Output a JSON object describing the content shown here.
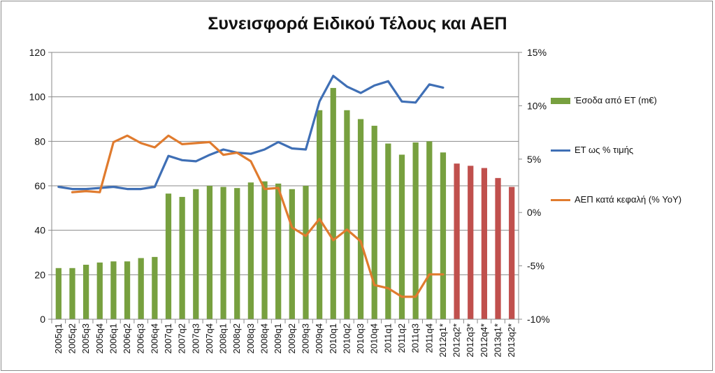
{
  "chart_data": {
    "type": "bar",
    "title": "Συνεισφορά Ειδικού Τέλους και ΑΕΠ",
    "categories": [
      "2005q1",
      "2005q2",
      "2005q3",
      "2005q4",
      "2006q1",
      "2006q2",
      "2006q3",
      "2006q4",
      "2007q1",
      "2007q2",
      "2007q3",
      "2007q4",
      "2008q1",
      "2008q2",
      "2008q3",
      "2008q4",
      "2009q1",
      "2009q2",
      "2009q3",
      "2009q4",
      "2010q1",
      "2010q2",
      "2010q3",
      "2010q4",
      "2011q1",
      "2011q2",
      "2011q3",
      "2011q4",
      "2012q1*",
      "2012q2*",
      "2012q3*",
      "2012q4*",
      "2013q1*",
      "2013q2*"
    ],
    "y_left": {
      "min": 0,
      "max": 120,
      "ticks": [
        "0",
        "20",
        "40",
        "60",
        "80",
        "100",
        "120"
      ]
    },
    "y_right": {
      "min": -10,
      "max": 15,
      "ticks": [
        "-10%",
        "-5%",
        "0%",
        "5%",
        "10%",
        "15%"
      ]
    },
    "grid": true,
    "legend_position": "right",
    "series": [
      {
        "name": "Έσοδα από ΕΤ (m€)",
        "kind": "bar",
        "axis": "left",
        "color": "#77a03f",
        "forecast_color": "#c0504d",
        "forecast_from_index": 29,
        "values": [
          23,
          23,
          24.5,
          25.5,
          26,
          26,
          27.5,
          28,
          56.5,
          55,
          58.5,
          60,
          59.5,
          59,
          61.5,
          62,
          61,
          58.5,
          60,
          94,
          104,
          94,
          90,
          87,
          79,
          74,
          79.5,
          80,
          75,
          70,
          69,
          68,
          63.5,
          59.5
        ]
      },
      {
        "name": "ΕΤ ως % τιμής",
        "kind": "line",
        "axis": "right",
        "color": "#3f6fb5",
        "values": [
          2.4,
          2.2,
          2.2,
          2.3,
          2.4,
          2.2,
          2.2,
          2.4,
          5.3,
          4.9,
          4.8,
          5.4,
          5.9,
          5.6,
          5.5,
          5.9,
          6.6,
          6.0,
          5.9,
          10.4,
          12.8,
          11.8,
          11.2,
          11.9,
          12.3,
          10.4,
          10.3,
          12.0,
          11.7,
          null,
          null,
          null,
          null,
          null
        ]
      },
      {
        "name": "ΑΕΠ κατά κεφαλή (% YoY)",
        "kind": "line",
        "axis": "right",
        "color": "#e07b2e",
        "values": [
          null,
          1.9,
          2.0,
          1.9,
          6.6,
          7.2,
          6.5,
          6.1,
          7.2,
          6.4,
          6.5,
          6.6,
          5.4,
          5.6,
          4.8,
          2.2,
          2.3,
          -1.4,
          -2.2,
          -0.6,
          -2.6,
          -1.6,
          -2.7,
          -6.8,
          -7.1,
          -7.9,
          -7.9,
          -5.8,
          -5.8,
          null,
          null,
          null,
          null,
          null
        ]
      }
    ]
  }
}
